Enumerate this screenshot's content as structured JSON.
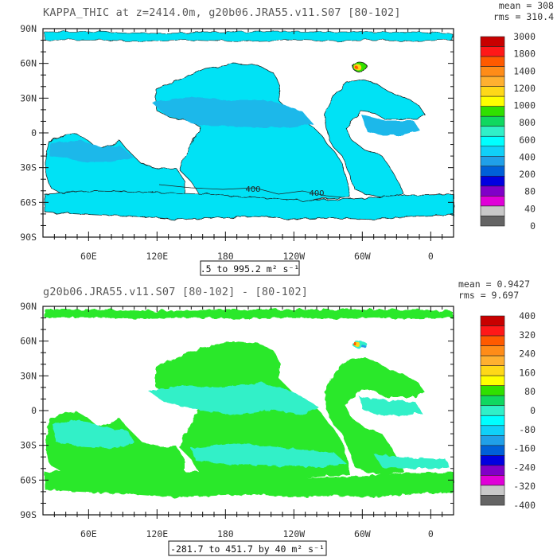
{
  "chart_data": [
    {
      "type": "heatmap",
      "title": "KAPPA_THIC at z=2414.0m, g20b06.JRA55.v11.S07 [80-102]",
      "stats": {
        "mean_label": "mean = 308",
        "rms_label": "rms = 310.4"
      },
      "range_label": ".5 to 995.2 m² s⁻¹",
      "contour_labels": [
        "400",
        "400"
      ],
      "x_ticks": [
        "60E",
        "120E",
        "180",
        "120W",
        "60W",
        "0"
      ],
      "x_tick_lons": [
        60,
        120,
        180,
        240,
        300,
        360
      ],
      "y_ticks": [
        "90N",
        "60N",
        "30N",
        "0",
        "30S",
        "60S",
        "90S"
      ],
      "y_tick_lats": [
        90,
        60,
        30,
        0,
        -30,
        -60,
        -90
      ],
      "xlim": [
        20,
        380
      ],
      "ylim": [
        -90,
        90
      ],
      "colorbar": {
        "labels": [
          "3000",
          "1800",
          "1400",
          "1200",
          "1000",
          "800",
          "600",
          "400",
          "200",
          "80",
          "40",
          "0"
        ],
        "colors": [
          "#c80000",
          "#ff1818",
          "#ff5a00",
          "#ff8c18",
          "#ffb030",
          "#ffd818",
          "#ffff00",
          "#30e000",
          "#10d860",
          "#30f0c8",
          "#00ffff",
          "#10d0f8",
          "#20a0e8",
          "#0060d8",
          "#0000e0",
          "#8000c8",
          "#e000d8",
          "#c8c8c8",
          "#646464"
        ]
      },
      "field_colors": {
        "background": "#00e2f5",
        "band": "#1ab8ea",
        "high": "#30f0c8"
      }
    },
    {
      "type": "heatmap",
      "title": "g20b06.JRA55.v11.S07 [80-102] -  [80-102]",
      "stats": {
        "mean_label": "mean = 0.9427",
        "rms_label": "rms = 9.697"
      },
      "range_label": "-281.7 to 451.7 by 40 m² s⁻¹",
      "x_ticks": [
        "60E",
        "120E",
        "180",
        "120W",
        "60W",
        "0"
      ],
      "x_tick_lons": [
        60,
        120,
        180,
        240,
        300,
        360
      ],
      "y_ticks": [
        "90N",
        "60N",
        "30N",
        "0",
        "30S",
        "60S",
        "90S"
      ],
      "y_tick_lats": [
        90,
        60,
        30,
        0,
        -30,
        -60,
        -90
      ],
      "xlim": [
        20,
        380
      ],
      "ylim": [
        -90,
        90
      ],
      "colorbar": {
        "labels": [
          "400",
          "320",
          "240",
          "160",
          "80",
          "0",
          "-80",
          "-160",
          "-240",
          "-320",
          "-400"
        ],
        "colors": [
          "#c80000",
          "#ff1818",
          "#ff5a00",
          "#ff8c18",
          "#ffb030",
          "#ffd818",
          "#ffff00",
          "#30e000",
          "#10d860",
          "#30f0c8",
          "#00ffff",
          "#10d0f8",
          "#20a0e8",
          "#0060d8",
          "#0000e0",
          "#8000c8",
          "#e000d8",
          "#c8c8c8",
          "#646464"
        ]
      },
      "field_colors": {
        "background": "#2ae82a",
        "band": "#30f0c8"
      }
    }
  ]
}
